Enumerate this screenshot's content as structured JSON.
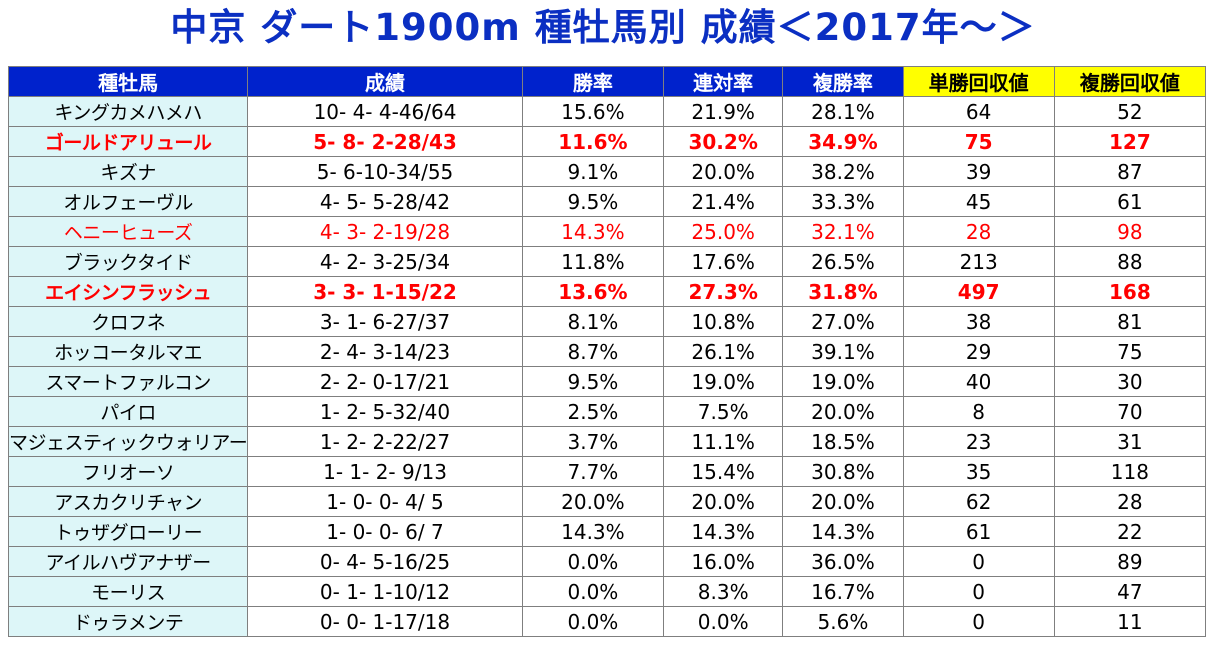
{
  "title": "中京 ダート1900m 種牡馬別 成績＜2017年～＞",
  "colors": {
    "header_bg": "#0022cc",
    "header_gold": "#ffff00",
    "horse_col_bg": "#ddf6f8",
    "highlight": "#ff0000",
    "title": "#0b2fc2"
  },
  "chart_data": {
    "type": "table",
    "title": "中京 ダート1900m 種牡馬別 成績＜2017年～＞",
    "columns": [
      "種牡馬",
      "成績",
      "勝率",
      "連対率",
      "複勝率",
      "単勝回収値",
      "複勝回収値"
    ],
    "rows": [
      {
        "sire": "キングカメハメハ",
        "record": "10- 4- 4-46/64",
        "win": "15.6%",
        "quinella": "21.9%",
        "place": "28.1%",
        "win_return": "64",
        "place_return": "52",
        "style": ""
      },
      {
        "sire": "ゴールドアリュール",
        "record": "5- 8- 2-28/43",
        "win": "11.6%",
        "quinella": "30.2%",
        "place": "34.9%",
        "win_return": "75",
        "place_return": "127",
        "style": "bold"
      },
      {
        "sire": "キズナ",
        "record": "5- 6-10-34/55",
        "win": "9.1%",
        "quinella": "20.0%",
        "place": "38.2%",
        "win_return": "39",
        "place_return": "87",
        "style": ""
      },
      {
        "sire": "オルフェーヴル",
        "record": "4- 5- 5-28/42",
        "win": "9.5%",
        "quinella": "21.4%",
        "place": "33.3%",
        "win_return": "45",
        "place_return": "61",
        "style": ""
      },
      {
        "sire": "ヘニーヒューズ",
        "record": "4- 3- 2-19/28",
        "win": "14.3%",
        "quinella": "25.0%",
        "place": "32.1%",
        "win_return": "28",
        "place_return": "98",
        "style": "red"
      },
      {
        "sire": "ブラックタイド",
        "record": "4- 2- 3-25/34",
        "win": "11.8%",
        "quinella": "17.6%",
        "place": "26.5%",
        "win_return": "213",
        "place_return": "88",
        "style": ""
      },
      {
        "sire": "エイシンフラッシュ",
        "record": "3- 3- 1-15/22",
        "win": "13.6%",
        "quinella": "27.3%",
        "place": "31.8%",
        "win_return": "497",
        "place_return": "168",
        "style": "bold"
      },
      {
        "sire": "クロフネ",
        "record": "3- 1- 6-27/37",
        "win": "8.1%",
        "quinella": "10.8%",
        "place": "27.0%",
        "win_return": "38",
        "place_return": "81",
        "style": ""
      },
      {
        "sire": "ホッコータルマエ",
        "record": "2- 4- 3-14/23",
        "win": "8.7%",
        "quinella": "26.1%",
        "place": "39.1%",
        "win_return": "29",
        "place_return": "75",
        "style": ""
      },
      {
        "sire": "スマートファルコン",
        "record": "2- 2- 0-17/21",
        "win": "9.5%",
        "quinella": "19.0%",
        "place": "19.0%",
        "win_return": "40",
        "place_return": "30",
        "style": ""
      },
      {
        "sire": "パイロ",
        "record": "1- 2- 5-32/40",
        "win": "2.5%",
        "quinella": "7.5%",
        "place": "20.0%",
        "win_return": "8",
        "place_return": "70",
        "style": ""
      },
      {
        "sire": "マジェスティックウォリアー",
        "record": "1- 2- 2-22/27",
        "win": "3.7%",
        "quinella": "11.1%",
        "place": "18.5%",
        "win_return": "23",
        "place_return": "31",
        "style": ""
      },
      {
        "sire": "フリオーソ",
        "record": "1- 1- 2- 9/13",
        "win": "7.7%",
        "quinella": "15.4%",
        "place": "30.8%",
        "win_return": "35",
        "place_return": "118",
        "style": ""
      },
      {
        "sire": "アスカクリチャン",
        "record": "1- 0- 0- 4/ 5",
        "win": "20.0%",
        "quinella": "20.0%",
        "place": "20.0%",
        "win_return": "62",
        "place_return": "28",
        "style": ""
      },
      {
        "sire": "トゥザグローリー",
        "record": "1- 0- 0- 6/ 7",
        "win": "14.3%",
        "quinella": "14.3%",
        "place": "14.3%",
        "win_return": "61",
        "place_return": "22",
        "style": ""
      },
      {
        "sire": "アイルハヴアナザー",
        "record": "0- 4- 5-16/25",
        "win": "0.0%",
        "quinella": "16.0%",
        "place": "36.0%",
        "win_return": "0",
        "place_return": "89",
        "style": ""
      },
      {
        "sire": "モーリス",
        "record": "0- 1- 1-10/12",
        "win": "0.0%",
        "quinella": "8.3%",
        "place": "16.7%",
        "win_return": "0",
        "place_return": "47",
        "style": ""
      },
      {
        "sire": "ドゥラメンテ",
        "record": "0- 0- 1-17/18",
        "win": "0.0%",
        "quinella": "0.0%",
        "place": "5.6%",
        "win_return": "0",
        "place_return": "11",
        "style": ""
      }
    ]
  }
}
